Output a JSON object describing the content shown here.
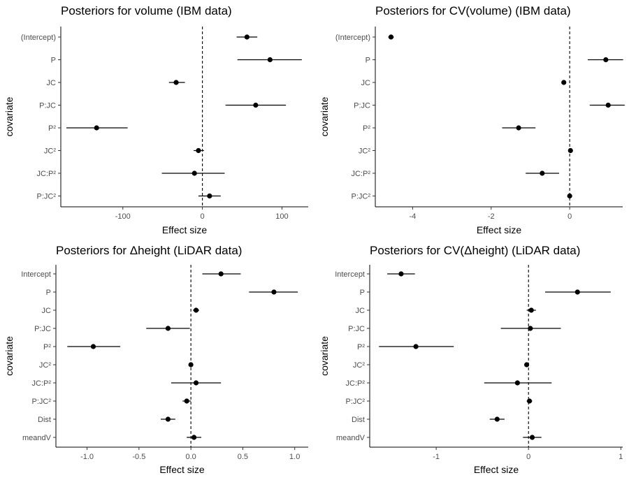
{
  "chart_data": [
    {
      "type": "forest",
      "title": "Posteriors for volume (IBM data)",
      "xlabel": "Effect size",
      "ylabel": "covariate",
      "xlim": [
        -178,
        133
      ],
      "xticks": [
        -100,
        0,
        100
      ],
      "xtick_labels": [
        "-100",
        "0",
        "100"
      ],
      "reference_line": 0,
      "grid": false,
      "categories": [
        "(Intercept)",
        "P",
        "JC",
        "P:JC",
        "P²",
        "JC²",
        "JC:P²",
        "P:JC²"
      ],
      "estimates": [
        56,
        85,
        -33,
        67,
        -133,
        -5,
        -10,
        9
      ],
      "lower": [
        43,
        44,
        -42,
        29,
        -171,
        -11,
        -51,
        -5
      ],
      "upper": [
        69,
        125,
        -22,
        105,
        -94,
        2,
        28,
        23
      ]
    },
    {
      "type": "forest",
      "title": "Posteriors for CV(volume) (IBM data)",
      "xlabel": "Effect size",
      "ylabel": "covariate",
      "xlim": [
        -4.95,
        1.35
      ],
      "xticks": [
        -4,
        -2,
        0
      ],
      "xtick_labels": [
        "-4",
        "-2",
        "0"
      ],
      "reference_line": 0,
      "grid": false,
      "categories": [
        "(Intercept)",
        "P",
        "JC",
        "P:JC",
        "P²",
        "JC²",
        "JC:P²",
        "P:JC²"
      ],
      "estimates": [
        -4.55,
        0.92,
        -0.15,
        0.98,
        -1.3,
        0.02,
        -0.7,
        0.0
      ],
      "lower": [
        -4.62,
        0.46,
        -0.2,
        0.51,
        -1.72,
        -0.01,
        -1.12,
        -0.03
      ],
      "upper": [
        -4.48,
        1.36,
        -0.1,
        1.4,
        -0.87,
        0.05,
        -0.27,
        0.03
      ]
    },
    {
      "type": "forest",
      "title": "Posteriors for Δheight (LiDAR data)",
      "xlabel": "Effect size",
      "ylabel": "covariate",
      "xlim": [
        -1.3,
        1.13
      ],
      "xticks": [
        -1.0,
        -0.5,
        0.0,
        0.5,
        1.0
      ],
      "xtick_labels": [
        "-1.0",
        "-0.5",
        "0.0",
        "0.5",
        "1.0"
      ],
      "reference_line": 0,
      "grid": false,
      "categories": [
        "Intercept",
        "P",
        "JC",
        "P:JC",
        "P²",
        "JC²",
        "JC:P²",
        "P:JC²",
        "Dist",
        "meandV"
      ],
      "estimates": [
        0.29,
        0.8,
        0.05,
        -0.22,
        -0.94,
        0.0,
        0.05,
        -0.04,
        -0.22,
        0.03
      ],
      "lower": [
        0.11,
        0.56,
        0.02,
        -0.43,
        -1.19,
        -0.01,
        -0.19,
        -0.08,
        -0.29,
        -0.04
      ],
      "upper": [
        0.48,
        1.03,
        0.08,
        -0.01,
        -0.68,
        0.02,
        0.29,
        0.0,
        -0.15,
        0.1
      ]
    },
    {
      "type": "forest",
      "title": "Posteriors for CV(Δheight) (LiDAR data)",
      "xlabel": "Effect size",
      "ylabel": "covariate",
      "xlim": [
        -1.72,
        1.02
      ],
      "xticks": [
        -1,
        0,
        1
      ],
      "xtick_labels": [
        "-1",
        "0",
        "1"
      ],
      "reference_line": 0,
      "grid": false,
      "categories": [
        "Intercept",
        "P",
        "JC",
        "P:JC",
        "P²",
        "JC²",
        "JC:P²",
        "P:JC²",
        "Dist",
        "meandV"
      ],
      "estimates": [
        -1.38,
        0.53,
        0.03,
        0.02,
        -1.22,
        -0.02,
        -0.12,
        0.01,
        -0.34,
        0.04
      ],
      "lower": [
        -1.53,
        0.18,
        -0.02,
        -0.3,
        -1.62,
        -0.04,
        -0.48,
        -0.02,
        -0.42,
        -0.06
      ],
      "upper": [
        -1.23,
        0.89,
        0.08,
        0.35,
        -0.81,
        0.0,
        0.25,
        0.04,
        -0.26,
        0.14
      ]
    }
  ]
}
